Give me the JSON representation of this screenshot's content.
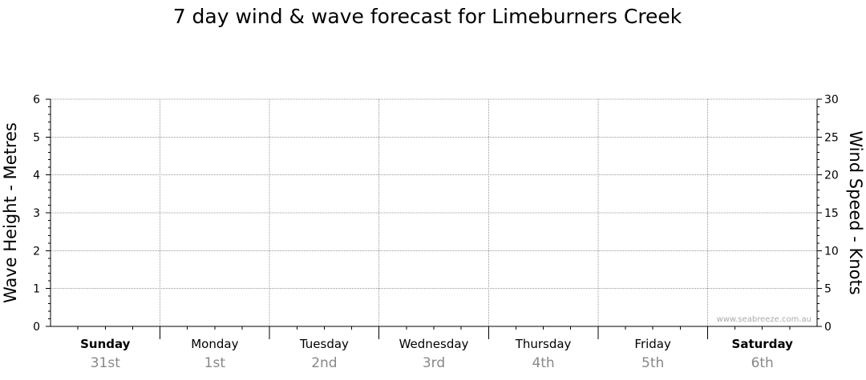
{
  "chart_data": {
    "type": "line",
    "title": "7 day wind & wave forecast for Limeburners Creek",
    "ylabel_left": "Wave Height - Metres",
    "ylabel_right": "Wind Speed - Knots",
    "ylim_left": [
      0,
      6
    ],
    "ylim_right": [
      0,
      30
    ],
    "yticks_left": [
      "0",
      "1",
      "2",
      "3",
      "4",
      "5",
      "6"
    ],
    "yticks_right": [
      "0",
      "5",
      "10",
      "15",
      "20",
      "25",
      "30"
    ],
    "days": [
      {
        "day": "Sunday",
        "date": "31st",
        "bold": true
      },
      {
        "day": "Monday",
        "date": "1st",
        "bold": false
      },
      {
        "day": "Tuesday",
        "date": "2nd",
        "bold": false
      },
      {
        "day": "Wednesday",
        "date": "3rd",
        "bold": false
      },
      {
        "day": "Thursday",
        "date": "4th",
        "bold": false
      },
      {
        "day": "Friday",
        "date": "5th",
        "bold": false
      },
      {
        "day": "Saturday",
        "date": "6th",
        "bold": true
      }
    ],
    "grid": true,
    "series": [],
    "watermark": "www.seabreeze.com.au",
    "colors": {
      "axis": "#000000",
      "grid": "#999999",
      "date_text": "#888888",
      "watermark_text": "#aaaaaa"
    }
  }
}
